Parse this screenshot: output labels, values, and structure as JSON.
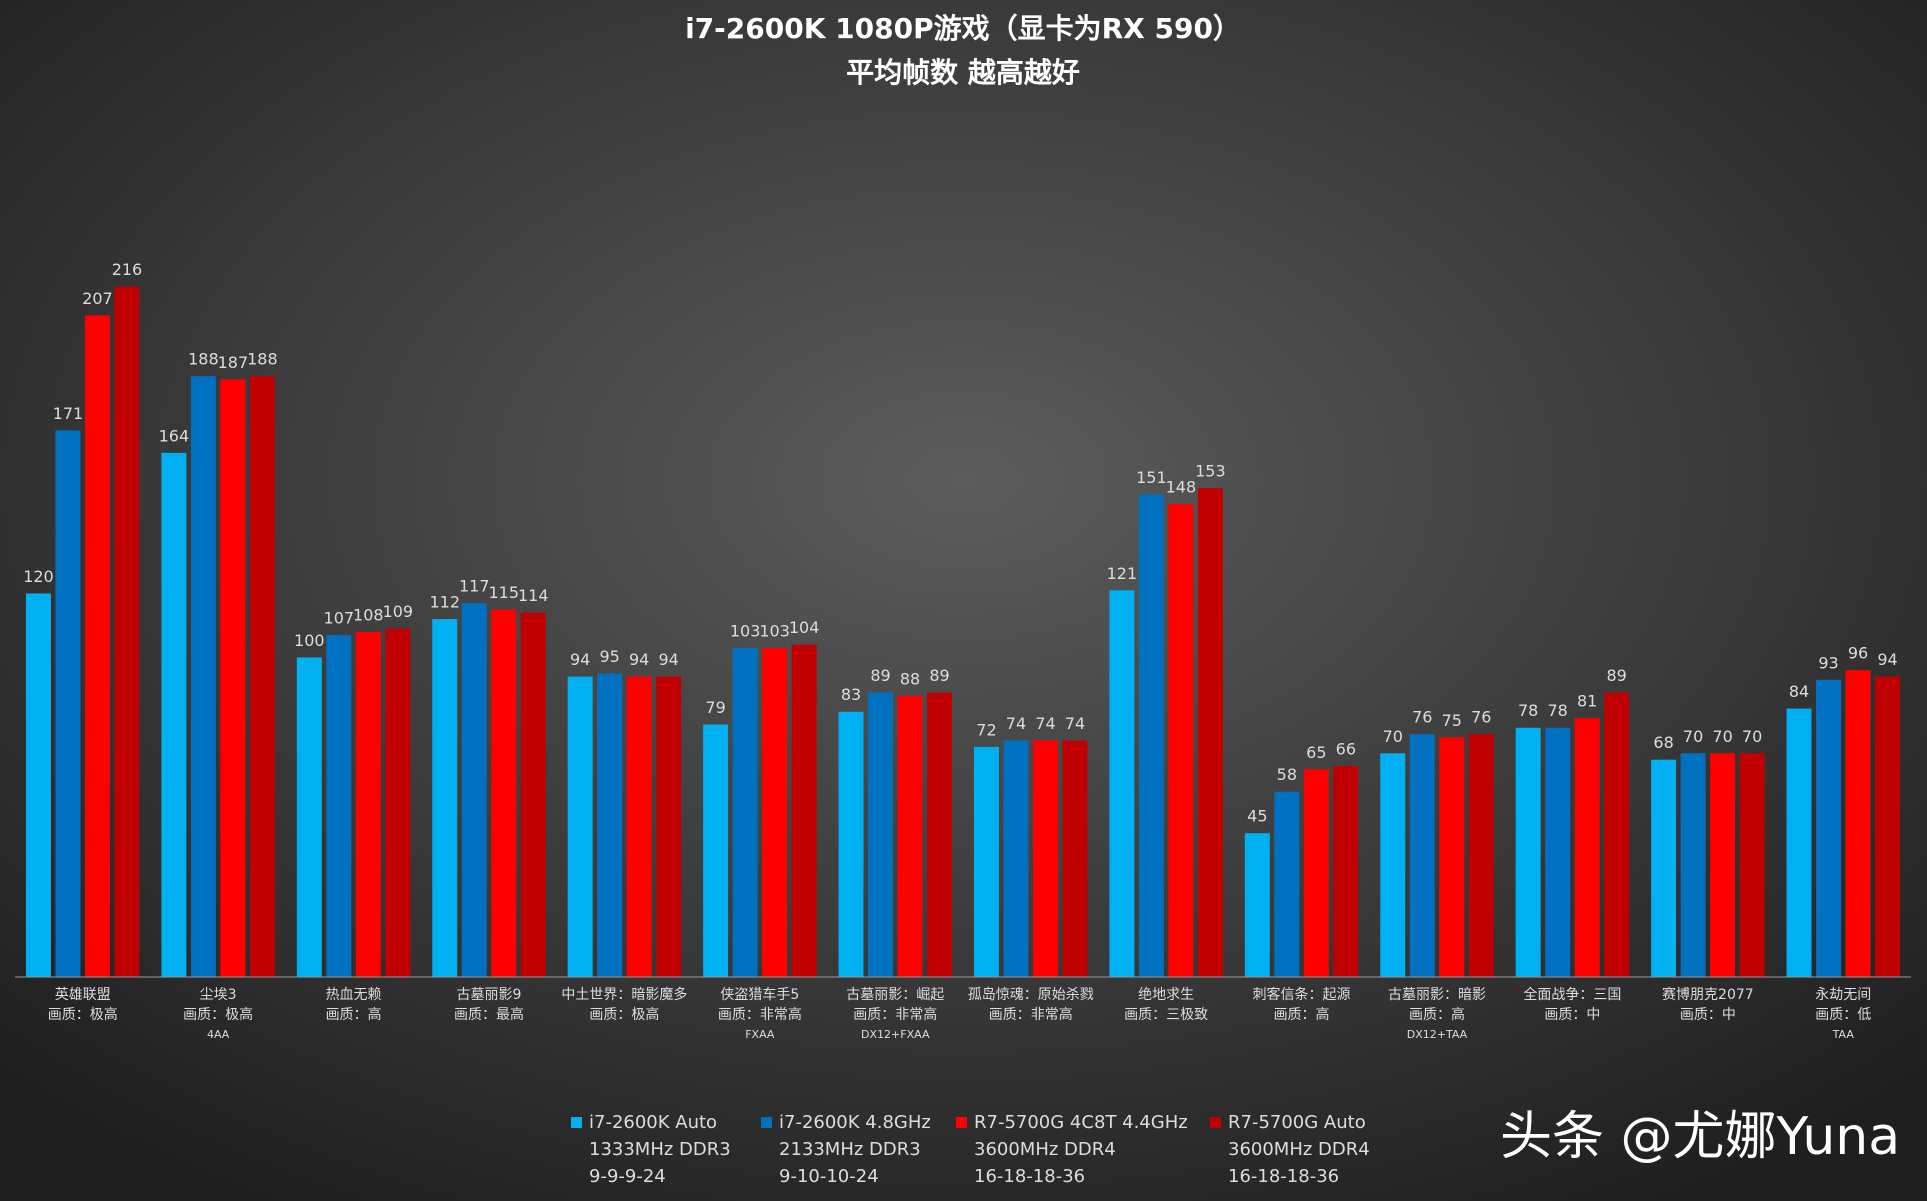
{
  "chart_data": {
    "type": "bar",
    "title": "i7-2600K 1080P游戏（显卡为RX 590）",
    "subtitle": "平均帧数 越高越好",
    "categories": [
      [
        "英雄联盟",
        "画质：极高"
      ],
      [
        "尘埃3",
        "画质：极高",
        "4AA"
      ],
      [
        "热血无赖",
        "画质：高"
      ],
      [
        "古墓丽影9",
        "画质：最高"
      ],
      [
        "中土世界：暗影魔多",
        "画质：极高"
      ],
      [
        "侠盗猎车手5",
        "画质：非常高",
        "FXAA"
      ],
      [
        "古墓丽影：崛起",
        "画质：非常高",
        "DX12+FXAA"
      ],
      [
        "孤岛惊魂：原始杀戮",
        "画质：非常高"
      ],
      [
        "绝地求生",
        "画质：三极致"
      ],
      [
        "刺客信条：起源",
        "画质：高"
      ],
      [
        "古墓丽影：暗影",
        "画质：高",
        "DX12+TAA"
      ],
      [
        "全面战争：三国",
        "画质：中"
      ],
      [
        "赛博朋克2077",
        "画质：中"
      ],
      [
        "永劫无间",
        "画质：低",
        "TAA"
      ]
    ],
    "series": [
      {
        "name": [
          "i7-2600K Auto",
          "1333MHz DDR3",
          "9-9-9-24"
        ],
        "color": "#00b0f0",
        "values": [
          120,
          164,
          100,
          112,
          94,
          79,
          83,
          72,
          121,
          45,
          70,
          78,
          68,
          84
        ]
      },
      {
        "name": [
          "i7-2600K 4.8GHz",
          "2133MHz DDR3",
          "9-10-10-24"
        ],
        "color": "#0070c0",
        "values": [
          171,
          188,
          107,
          117,
          95,
          103,
          89,
          74,
          151,
          58,
          76,
          78,
          70,
          93
        ]
      },
      {
        "name": [
          "R7-5700G 4C8T 4.4GHz",
          "3600MHz DDR4",
          "16-18-18-36"
        ],
        "color": "#ff0000",
        "values": [
          207,
          187,
          108,
          115,
          94,
          103,
          88,
          74,
          148,
          65,
          75,
          81,
          70,
          96
        ]
      },
      {
        "name": [
          "R7-5700G Auto",
          "3600MHz DDR4",
          "16-18-18-36"
        ],
        "color": "#c00000",
        "values": [
          216,
          188,
          109,
          114,
          94,
          104,
          89,
          74,
          153,
          66,
          76,
          89,
          70,
          94
        ]
      }
    ],
    "ylim": [
      0,
      250
    ],
    "watermark": "头条 @尤娜Yuna"
  }
}
